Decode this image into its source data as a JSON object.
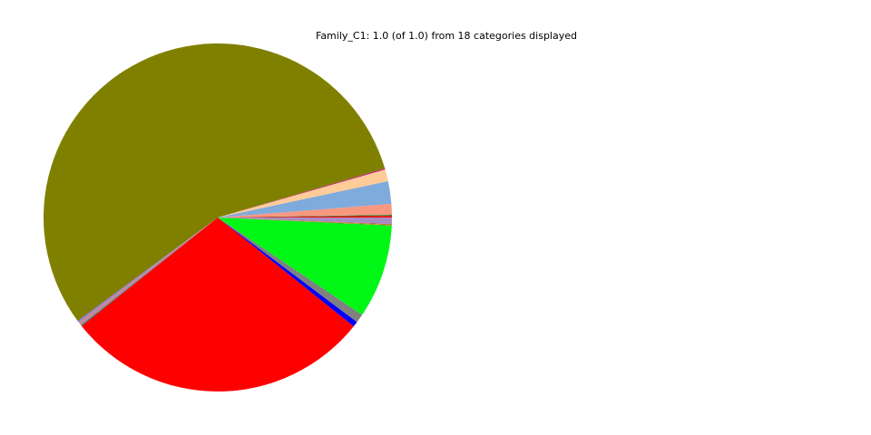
{
  "chart_data": {
    "type": "pie",
    "title": "Family_C1: 1.0 (of 1.0) from 18 categories displayed",
    "start_angle_deg": 0,
    "direction": "counterclockwise",
    "legend": "none",
    "slices": [
      {
        "value": 0.15,
        "color": "#ff0000"
      },
      {
        "value": 0.1,
        "color": "#2e7d32"
      },
      {
        "value": 1.0,
        "color": "#f89880"
      },
      {
        "value": 2.1,
        "color": "#7faadc"
      },
      {
        "value": 1.1,
        "color": "#ffcc99"
      },
      {
        "value": 0.1,
        "color": "#c71585"
      },
      {
        "value": 55.55,
        "color": "#808000"
      },
      {
        "value": 0.1,
        "color": "#7b68ee"
      },
      {
        "value": 0.4,
        "color": "#c08a9c"
      },
      {
        "value": 0.1,
        "color": "#2f6f6f"
      },
      {
        "value": 28.5,
        "color": "#ff0000"
      },
      {
        "value": 0.5,
        "color": "#0000ff"
      },
      {
        "value": 0.8,
        "color": "#808080"
      },
      {
        "value": 8.7,
        "color": "#00f715"
      },
      {
        "value": 0.05,
        "color": "#556b2f"
      },
      {
        "value": 0.05,
        "color": "#ffa500"
      },
      {
        "value": 0.05,
        "color": "#8b4513"
      },
      {
        "value": 0.6,
        "color": "#a98bc4"
      }
    ]
  }
}
